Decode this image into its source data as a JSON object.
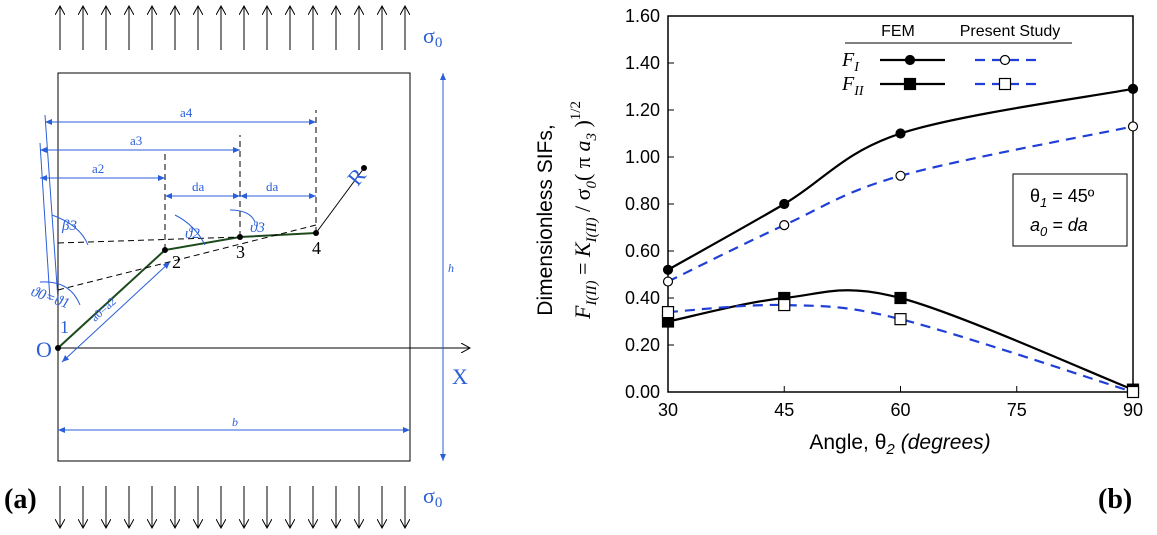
{
  "diagram": {
    "sigma_top": "σ",
    "sigma_top_sub": "0",
    "sigma_bottom": "σ",
    "sigma_bottom_sub": "0",
    "origin": "O",
    "x_axis": "X",
    "r_axis": "R",
    "points": [
      "1",
      "2",
      "3",
      "4"
    ],
    "a4": "a4",
    "a3": "a3",
    "a2": "a2",
    "da_1": "da",
    "da_2": "da",
    "beta3": "β3",
    "theta2": "ϑ2",
    "theta3": "ϑ3",
    "theta01": "ϑ0=ϑ1",
    "a0": "a0=a2",
    "h": "h",
    "b": "b",
    "panel": "(a)"
  },
  "chart_data": {
    "type": "line",
    "panel": "(b)",
    "x": [
      30,
      45,
      60,
      90
    ],
    "xlim": [
      30,
      90
    ],
    "xticks": [
      30,
      45,
      60,
      75,
      90
    ],
    "ylim": [
      0,
      1.6
    ],
    "yticks": [
      {
        "value": 0,
        "label": "0.00"
      },
      {
        "value": 0.2,
        "label": "0.20"
      },
      {
        "value": 0.4,
        "label": "0.40"
      },
      {
        "value": 0.6,
        "label": "0.60"
      },
      {
        "value": 0.8,
        "label": "0.80"
      },
      {
        "value": 1.0,
        "label": "1.00"
      },
      {
        "value": 1.2,
        "label": "1.20"
      },
      {
        "value": 1.4,
        "label": "1.40"
      },
      {
        "value": 1.6,
        "label": "1.60"
      }
    ],
    "xlabel": {
      "text": "Angle, θ",
      "sub": "2",
      "italic": "(degrees)"
    },
    "ylabel_line1": "Dimensionless SIFs,",
    "ylabel_line2": [
      {
        "text": "F",
        "style": "italic"
      },
      {
        "text": "I(II)",
        "style": "sub"
      },
      {
        "text": "  =  ",
        "style": "normal"
      },
      {
        "text": "K",
        "style": "italic"
      },
      {
        "text": "I(II)",
        "style": "sub"
      },
      {
        "text": "  / σ",
        "style": "normal"
      },
      {
        "text": "0",
        "style": "sub"
      },
      {
        "text": "( π ",
        "style": "normal"
      },
      {
        "text": "a",
        "style": "italic"
      },
      {
        "text": "3",
        "style": "sub"
      },
      {
        "text": " )",
        "style": "normal"
      },
      {
        "text": "1/2",
        "style": "sup"
      }
    ],
    "legend": {
      "columns": [
        "FEM",
        "Present Study"
      ],
      "rows": [
        {
          "symbol": "F",
          "subscript": "I"
        },
        {
          "symbol": "F",
          "subscript": "II"
        }
      ]
    },
    "annotation": [
      {
        "symbol": "θ",
        "sub": "1",
        "rest": " = 45º"
      },
      {
        "symbol": "a",
        "sub": "0",
        "rest": " = da"
      }
    ],
    "series": [
      {
        "color": "#000000",
        "dashed": false,
        "marker": "circle",
        "filled": true,
        "values": [
          0.52,
          0.8,
          1.1,
          1.29
        ]
      },
      {
        "color": "#1f3fd6",
        "dashed": true,
        "marker": "circle",
        "filled": false,
        "values": [
          0.47,
          0.71,
          0.92,
          1.13
        ]
      },
      {
        "color": "#000000",
        "dashed": false,
        "marker": "square",
        "filled": true,
        "values": [
          0.3,
          0.4,
          0.4,
          0.01
        ]
      },
      {
        "color": "#1f3fd6",
        "dashed": true,
        "marker": "square",
        "filled": false,
        "values": [
          0.34,
          0.37,
          0.31,
          0.0
        ]
      }
    ]
  }
}
